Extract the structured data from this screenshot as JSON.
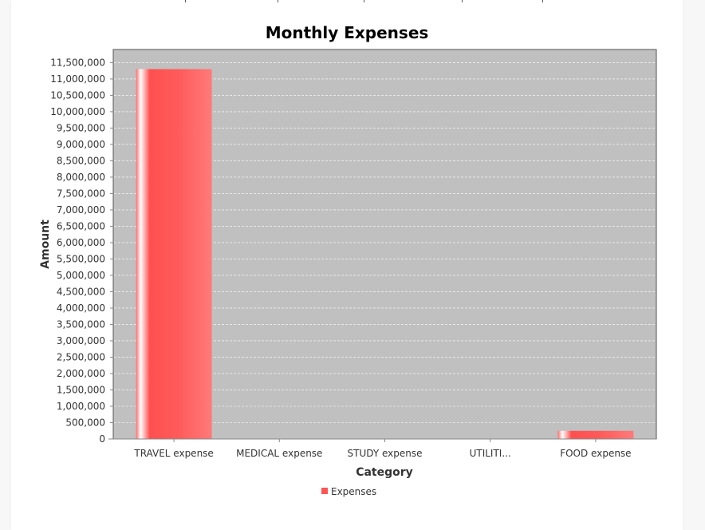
{
  "chart_data": {
    "type": "bar",
    "title": "Monthly Expenses",
    "xlabel": "Category",
    "ylabel": "Amount",
    "categories": [
      "TRAVEL expense",
      "MEDICAL expense",
      "STUDY expense",
      "UTILITI...",
      "FOOD expense"
    ],
    "series": [
      {
        "name": "Expenses",
        "values": [
          11300000,
          0,
          0,
          0,
          250000
        ]
      }
    ],
    "ylim": [
      0,
      11900000
    ],
    "yticks": [
      0,
      500000,
      1000000,
      1500000,
      2000000,
      2500000,
      3000000,
      3500000,
      4000000,
      4500000,
      5000000,
      5500000,
      6000000,
      6500000,
      7000000,
      7500000,
      8000000,
      8500000,
      9000000,
      9500000,
      10000000,
      10500000,
      11000000,
      11500000
    ],
    "ytick_labels": [
      "0",
      "500,000",
      "1,000,000",
      "1,500,000",
      "2,000,000",
      "2,500,000",
      "3,000,000",
      "3,500,000",
      "4,000,000",
      "4,500,000",
      "5,000,000",
      "5,500,000",
      "6,000,000",
      "6,500,000",
      "7,000,000",
      "7,500,000",
      "8,000,000",
      "8,500,000",
      "9,000,000",
      "9,500,000",
      "10,000,000",
      "10,500,000",
      "11,000,000",
      "11,500,000"
    ],
    "grid": true,
    "legend_position": "bottom",
    "colors": {
      "bar": "#ff5555",
      "plot_background": "#c0c0c0",
      "gridline": "#ffffff"
    }
  }
}
